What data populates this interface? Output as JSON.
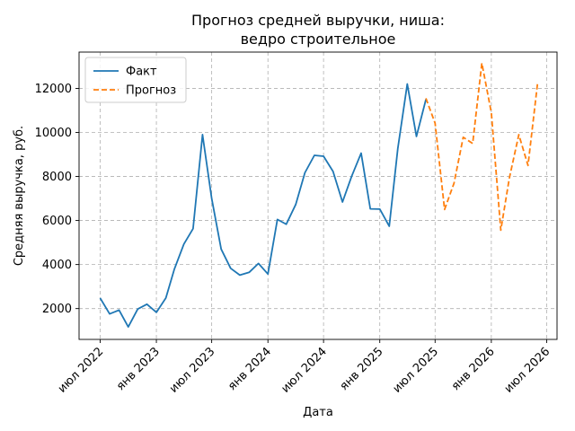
{
  "chart_data": {
    "type": "line",
    "title": "Прогноз средней выручки, ниша:\nведро строительное",
    "xlabel": "Дата",
    "ylabel": "Средняя выручка, руб.",
    "x_ticks": [
      {
        "date": "2022-07-01",
        "label": "июл 2022"
      },
      {
        "date": "2023-01-01",
        "label": "янв 2023"
      },
      {
        "date": "2023-07-01",
        "label": "июл 2023"
      },
      {
        "date": "2024-01-01",
        "label": "янв 2024"
      },
      {
        "date": "2024-07-01",
        "label": "июл 2024"
      },
      {
        "date": "2025-01-01",
        "label": "янв 2025"
      },
      {
        "date": "2025-07-01",
        "label": "июл 2025"
      },
      {
        "date": "2026-01-01",
        "label": "янв 2026"
      },
      {
        "date": "2026-07-01",
        "label": "июл 2026"
      }
    ],
    "y_ticks": [
      2000,
      4000,
      6000,
      8000,
      10000,
      12000
    ],
    "xlim": [
      "2022-04-23",
      "2026-08-04"
    ],
    "ylim": [
      600,
      13650
    ],
    "grid": true,
    "legend_position": "top-left",
    "series": [
      {
        "name": "Факт",
        "color": "#1f77b4",
        "style": "solid",
        "points": [
          {
            "x": "2022-07-01",
            "y": 2480
          },
          {
            "x": "2022-08-01",
            "y": 1760
          },
          {
            "x": "2022-09-01",
            "y": 1930
          },
          {
            "x": "2022-10-01",
            "y": 1170
          },
          {
            "x": "2022-11-01",
            "y": 1980
          },
          {
            "x": "2022-12-01",
            "y": 2200
          },
          {
            "x": "2023-01-01",
            "y": 1830
          },
          {
            "x": "2023-02-01",
            "y": 2480
          },
          {
            "x": "2023-03-01",
            "y": 3800
          },
          {
            "x": "2023-04-01",
            "y": 4930
          },
          {
            "x": "2023-05-01",
            "y": 5630
          },
          {
            "x": "2023-06-01",
            "y": 9900
          },
          {
            "x": "2023-07-01",
            "y": 7000
          },
          {
            "x": "2023-08-01",
            "y": 4700
          },
          {
            "x": "2023-09-01",
            "y": 3830
          },
          {
            "x": "2023-10-01",
            "y": 3520
          },
          {
            "x": "2023-11-01",
            "y": 3650
          },
          {
            "x": "2023-12-01",
            "y": 4050
          },
          {
            "x": "2024-01-01",
            "y": 3570
          },
          {
            "x": "2024-02-01",
            "y": 6050
          },
          {
            "x": "2024-03-01",
            "y": 5830
          },
          {
            "x": "2024-04-01",
            "y": 6730
          },
          {
            "x": "2024-05-01",
            "y": 8170
          },
          {
            "x": "2024-06-01",
            "y": 8960
          },
          {
            "x": "2024-07-01",
            "y": 8920
          },
          {
            "x": "2024-08-01",
            "y": 8230
          },
          {
            "x": "2024-09-01",
            "y": 6840
          },
          {
            "x": "2024-10-01",
            "y": 8010
          },
          {
            "x": "2024-11-01",
            "y": 9060
          },
          {
            "x": "2024-12-01",
            "y": 6530
          },
          {
            "x": "2025-01-01",
            "y": 6520
          },
          {
            "x": "2025-02-01",
            "y": 5740
          },
          {
            "x": "2025-03-01",
            "y": 9270
          },
          {
            "x": "2025-04-01",
            "y": 12200
          },
          {
            "x": "2025-05-01",
            "y": 9820
          },
          {
            "x": "2025-06-01",
            "y": 11500
          }
        ]
      },
      {
        "name": "Прогноз",
        "color": "#ff7f0e",
        "style": "dashed",
        "points": [
          {
            "x": "2025-06-01",
            "y": 11550
          },
          {
            "x": "2025-07-01",
            "y": 10420
          },
          {
            "x": "2025-08-01",
            "y": 6500
          },
          {
            "x": "2025-09-01",
            "y": 7700
          },
          {
            "x": "2025-10-01",
            "y": 9780
          },
          {
            "x": "2025-11-01",
            "y": 9500
          },
          {
            "x": "2025-12-01",
            "y": 13150
          },
          {
            "x": "2026-01-01",
            "y": 10900
          },
          {
            "x": "2026-02-01",
            "y": 5560
          },
          {
            "x": "2026-03-01",
            "y": 7930
          },
          {
            "x": "2026-04-01",
            "y": 9900
          },
          {
            "x": "2026-05-01",
            "y": 8500
          },
          {
            "x": "2026-06-01",
            "y": 12200
          }
        ]
      }
    ]
  }
}
